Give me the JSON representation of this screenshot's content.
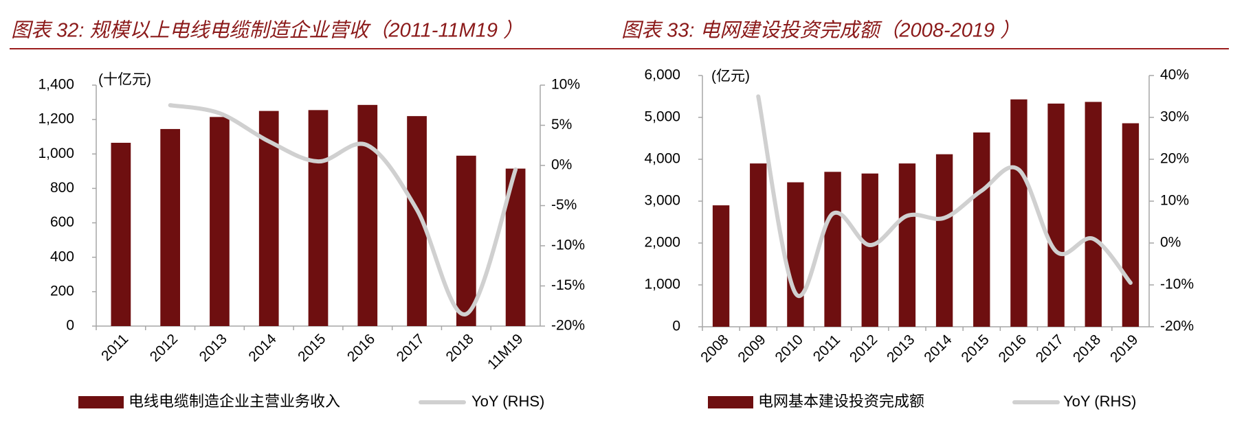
{
  "chart_data": [
    {
      "type": "bar",
      "title": "图表 32: 规模以上电线电缆制造企业营收（2011-11M19 ）",
      "y_label": "(十亿元)",
      "categories": [
        "2011",
        "2012",
        "2013",
        "2014",
        "2015",
        "2016",
        "2017",
        "2018",
        "11M19"
      ],
      "series": [
        {
          "name": "电线电缆制造企业主营业务收入",
          "type": "bar",
          "color": "#6e0f10",
          "values": [
            1065,
            1145,
            1215,
            1250,
            1255,
            1285,
            1220,
            990,
            915
          ]
        },
        {
          "name": "YoY (RHS)",
          "type": "line",
          "axis": "y2",
          "color": "#d0d0d0",
          "values": [
            null,
            7.5,
            6.5,
            3,
            0.5,
            2.5,
            -5.5,
            -18.5,
            -0.5
          ]
        }
      ],
      "ylim": [
        0,
        1400
      ],
      "yticks": [
        0,
        200,
        400,
        600,
        800,
        {
          "value": 1000,
          "label": "1,000"
        },
        {
          "value": 1200,
          "label": "1,200"
        },
        {
          "value": 1400,
          "label": "1,400"
        }
      ],
      "y2lim": [
        -20,
        10
      ],
      "y2ticks": [
        {
          "value": -20,
          "label": "-20%"
        },
        {
          "value": -15,
          "label": "-15%"
        },
        {
          "value": -10,
          "label": "-10%"
        },
        {
          "value": -5,
          "label": "-5%"
        },
        {
          "value": 0,
          "label": "0%"
        },
        {
          "value": 5,
          "label": "5%"
        },
        {
          "value": 10,
          "label": "10%"
        }
      ],
      "legend": "bottom"
    },
    {
      "type": "bar",
      "title": "图表 33: 电网建设投资完成额（2008-2019 ）",
      "y_label": "(亿元)",
      "categories": [
        "2008",
        "2009",
        "2010",
        "2011",
        "2012",
        "2013",
        "2014",
        "2015",
        "2016",
        "2017",
        "2018",
        "2019"
      ],
      "series": [
        {
          "name": "电网基本建设投资完成额",
          "type": "bar",
          "color": "#6e0f10",
          "values": [
            2900,
            3900,
            3450,
            3700,
            3660,
            3900,
            4120,
            4640,
            5430,
            5330,
            5370,
            4860
          ]
        },
        {
          "name": "YoY (RHS)",
          "type": "line",
          "axis": "y2",
          "color": "#d0d0d0",
          "values": [
            null,
            35,
            -12,
            7,
            -0.5,
            6.5,
            6,
            12.5,
            17.5,
            -2,
            1,
            -9.5
          ]
        }
      ],
      "ylim": [
        0,
        6000
      ],
      "yticks": [
        0,
        {
          "value": 1000,
          "label": "1,000"
        },
        {
          "value": 2000,
          "label": "2,000"
        },
        {
          "value": 3000,
          "label": "3,000"
        },
        {
          "value": 4000,
          "label": "4,000"
        },
        {
          "value": 5000,
          "label": "5,000"
        },
        {
          "value": 6000,
          "label": "6,000"
        }
      ],
      "y2lim": [
        -20,
        40
      ],
      "y2ticks": [
        {
          "value": -20,
          "label": "-20%"
        },
        {
          "value": -10,
          "label": "-10%"
        },
        {
          "value": 0,
          "label": "0%"
        },
        {
          "value": 10,
          "label": "10%"
        },
        {
          "value": 20,
          "label": "20%"
        },
        {
          "value": 30,
          "label": "30%"
        },
        {
          "value": 40,
          "label": "40%"
        }
      ],
      "legend": "bottom"
    }
  ]
}
